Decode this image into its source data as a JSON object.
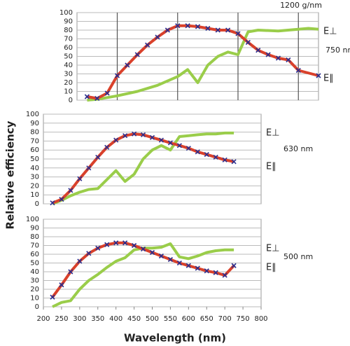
{
  "chart_data": [
    {
      "type": "line",
      "subtitle": "1200 g/nm",
      "annotation": "750 nm",
      "ylabel": "Relative efficiency",
      "xlim": [
        200,
        800
      ],
      "xticks": [
        300,
        450,
        600,
        750
      ],
      "xtick_labels": false,
      "ylim": [
        0,
        100
      ],
      "yticks": [
        0,
        10,
        20,
        30,
        40,
        50,
        60,
        70,
        80,
        90,
        100
      ],
      "grid": true,
      "series": [
        {
          "name": "E⊥",
          "color": "#9acd4a",
          "x": [
            225,
            250,
            300,
            350,
            400,
            450,
            475,
            500,
            525,
            550,
            575,
            600,
            625,
            650,
            700,
            750,
            775,
            800
          ],
          "values": [
            0,
            1,
            5,
            10,
            17,
            27,
            35,
            20,
            40,
            50,
            55,
            52,
            78,
            80,
            79,
            81,
            82,
            81
          ]
        },
        {
          "name": "E∥",
          "color": "#d9412b",
          "marker": "x",
          "marker_color": "#2b2f8f",
          "x": [
            225,
            250,
            275,
            300,
            325,
            350,
            375,
            400,
            425,
            450,
            475,
            500,
            525,
            550,
            575,
            600,
            625,
            650,
            675,
            700,
            725,
            750,
            800
          ],
          "values": [
            4,
            2,
            8,
            28,
            40,
            52,
            63,
            72,
            80,
            85,
            85,
            84,
            82,
            80,
            80,
            76,
            66,
            57,
            52,
            48,
            46,
            34,
            28
          ]
        }
      ]
    },
    {
      "type": "line",
      "annotation": "630 nm",
      "xlim": [
        200,
        800
      ],
      "ylim": [
        0,
        100
      ],
      "yticks": [
        0,
        10,
        20,
        30,
        40,
        50,
        60,
        70,
        80,
        90,
        100
      ],
      "grid": true,
      "series": [
        {
          "name": "E⊥",
          "color": "#9acd4a",
          "x": [
            225,
            250,
            275,
            300,
            325,
            350,
            375,
            400,
            425,
            450,
            475,
            500,
            525,
            550,
            575,
            600,
            625,
            650,
            675,
            700,
            725
          ],
          "values": [
            0,
            4,
            9,
            13,
            16,
            17,
            27,
            37,
            25,
            33,
            50,
            60,
            65,
            60,
            75,
            76,
            77,
            78,
            78,
            79,
            79
          ]
        },
        {
          "name": "E∥",
          "color": "#d9412b",
          "marker": "x",
          "marker_color": "#2b2f8f",
          "x": [
            225,
            250,
            275,
            300,
            325,
            350,
            375,
            400,
            425,
            450,
            475,
            500,
            525,
            550,
            575,
            600,
            625,
            650,
            675,
            700,
            725
          ],
          "values": [
            1,
            5,
            15,
            28,
            40,
            52,
            63,
            71,
            76,
            78,
            77,
            74,
            71,
            68,
            65,
            62,
            58,
            55,
            52,
            49,
            47
          ]
        }
      ]
    },
    {
      "type": "line",
      "annotation": "500 nm",
      "xlabel": "Wavelength (nm)",
      "xlim": [
        200,
        800
      ],
      "xticks": [
        200,
        250,
        300,
        350,
        400,
        450,
        500,
        550,
        600,
        650,
        700,
        750,
        800
      ],
      "ylim": [
        0,
        100
      ],
      "yticks": [
        0,
        10,
        20,
        30,
        40,
        50,
        60,
        70,
        80,
        90,
        100
      ],
      "grid": true,
      "series": [
        {
          "name": "E⊥",
          "color": "#9acd4a",
          "x": [
            225,
            250,
            275,
            300,
            325,
            350,
            375,
            400,
            425,
            450,
            475,
            500,
            525,
            550,
            575,
            600,
            625,
            650,
            675,
            700,
            725
          ],
          "values": [
            0,
            5,
            7,
            20,
            30,
            37,
            45,
            52,
            56,
            65,
            67,
            67,
            68,
            72,
            57,
            55,
            58,
            62,
            64,
            65,
            65
          ]
        },
        {
          "name": "E∥",
          "color": "#d9412b",
          "marker": "x",
          "marker_color": "#2b2f8f",
          "x": [
            225,
            250,
            275,
            300,
            325,
            350,
            375,
            400,
            425,
            450,
            475,
            500,
            525,
            550,
            575,
            600,
            625,
            650,
            675,
            700,
            725
          ],
          "values": [
            11,
            25,
            40,
            52,
            61,
            67,
            71,
            73,
            73,
            70,
            66,
            62,
            58,
            54,
            50,
            47,
            44,
            41,
            39,
            36,
            47
          ]
        }
      ]
    }
  ]
}
